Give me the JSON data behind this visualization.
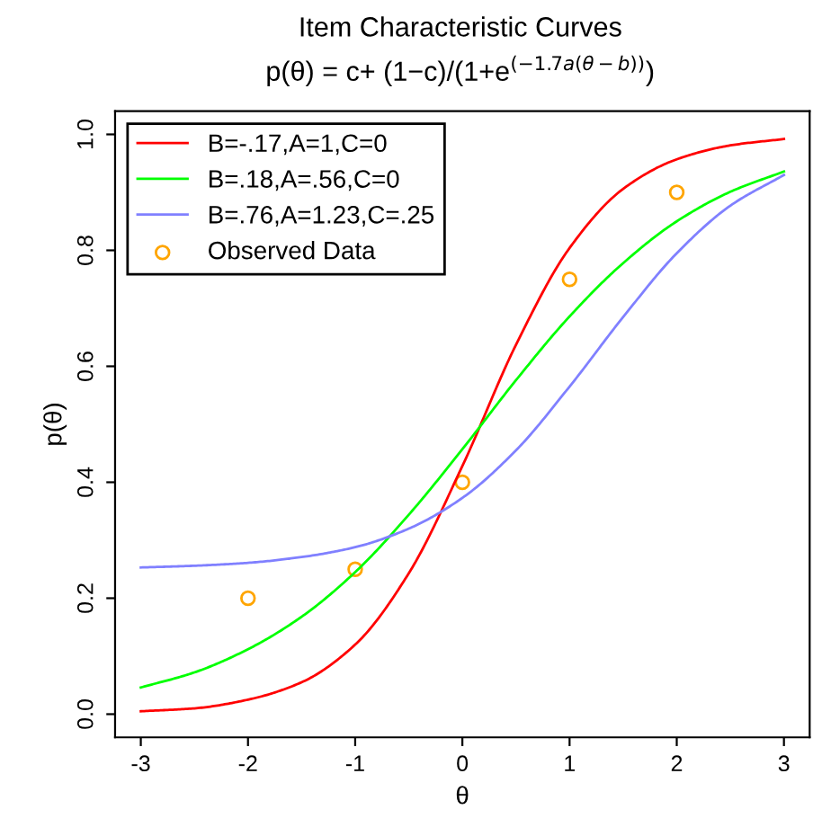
{
  "chart_data": {
    "type": "line",
    "title": "Item Characteristic Curves",
    "subtitle": "p(θ) = c+ (1−c)/(1+e$^{(−1.7a(θ−b))}$)",
    "xlabel": "θ",
    "ylabel": "p(θ)",
    "x": [
      -3,
      -2.5,
      -2,
      -1.5,
      -1,
      -0.5,
      0,
      0.5,
      1,
      1.5,
      2,
      2.5,
      3
    ],
    "series": [
      {
        "name": "B=-.17,A=1,C=0",
        "color": "#ff0000",
        "values": [
          0.005,
          0.01,
          0.025,
          0.055,
          0.12,
          0.243,
          0.428,
          0.637,
          0.804,
          0.906,
          0.957,
          0.981,
          0.992
        ]
      },
      {
        "name": "B=.18,A=.56,C=0",
        "color": "#00ff00",
        "values": [
          0.046,
          0.072,
          0.112,
          0.168,
          0.245,
          0.344,
          0.457,
          0.576,
          0.686,
          0.778,
          0.85,
          0.901,
          0.936
        ]
      },
      {
        "name": "B=.76,A=1.23,C=.25",
        "color": "#8080ff",
        "values": [
          0.253,
          0.256,
          0.261,
          0.271,
          0.288,
          0.32,
          0.373,
          0.455,
          0.565,
          0.685,
          0.795,
          0.877,
          0.93
        ]
      },
      {
        "name": "Observed Data",
        "color": "#ffa500",
        "type": "scatter",
        "marker": "circle",
        "x": [
          -2,
          -1,
          0,
          1,
          2
        ],
        "values": [
          0.2,
          0.25,
          0.4,
          0.75,
          0.9
        ]
      }
    ],
    "xlim": [
      -3.24,
      3.24
    ],
    "ylim": [
      -0.04,
      1.04
    ],
    "xticks": [
      -3,
      -2,
      -1,
      0,
      1,
      2,
      3
    ],
    "yticks": [
      {
        "value": 0,
        "label": "0.0"
      },
      {
        "value": 0.2,
        "label": "0.2"
      },
      {
        "value": 0.4,
        "label": "0.4"
      },
      {
        "value": 0.6,
        "label": "0.6"
      },
      {
        "value": 0.8,
        "label": "0.8"
      },
      {
        "value": 1,
        "label": "1.0"
      }
    ],
    "grid": false,
    "legend": "top left"
  }
}
